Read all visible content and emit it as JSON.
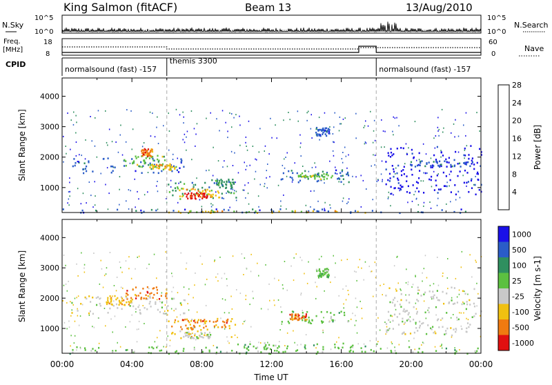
{
  "header": {
    "station": "King Salmon (fitACF)",
    "beam": "Beam 13",
    "date": "13/Aug/2010"
  },
  "strip": {
    "nsky_label": "N.Sky",
    "nsearch_label": "N.Search",
    "freq_label_1": "Freq.",
    "freq_label_2": "[MHz]",
    "nave_label": "Nave",
    "cpid_label": "CPID",
    "nsky_ticks": [
      "10^5",
      "10^0"
    ],
    "nsearch_ticks": [
      "10^5",
      "10^0"
    ],
    "freq_ticks": [
      "18",
      "8"
    ],
    "nave_ticks": [
      "60",
      "0"
    ],
    "cpid_segments": [
      {
        "label": "normalsound (fast)  -157",
        "start": 0,
        "end": 6
      },
      {
        "label": "themis 3300",
        "start": 6,
        "end": 18
      },
      {
        "label": "normalsound (fast)  -157",
        "start": 18,
        "end": 24
      }
    ]
  },
  "chart_data": [
    {
      "type": "heatmap",
      "panel": "power",
      "xlabel": "",
      "ylabel": "Slant Range [km]",
      "x_ticks": [
        "00:00",
        "04:00",
        "08:00",
        "12:00",
        "16:00",
        "20:00",
        "00:00"
      ],
      "xlim": [
        0,
        24
      ],
      "ylim": [
        180,
        4600
      ],
      "y_ticks": [
        1000,
        2000,
        3000,
        4000
      ],
      "colorbar": {
        "label": "Power [dB]",
        "ticks": [
          "4",
          "8",
          "12",
          "16",
          "20",
          "24",
          "28"
        ],
        "colors": [
          "#1a10e8",
          "#2a5cc8",
          "#2f8f5f",
          "#5cc040",
          "#f0c010",
          "#f07a10",
          "#e01010"
        ]
      },
      "bands": [
        {
          "t0": 0.5,
          "t1": 7.0,
          "r0": 1500,
          "r1": 2000,
          "level": 1
        },
        {
          "t0": 3.5,
          "t1": 6.0,
          "r0": 1700,
          "r1": 2100,
          "level": 3
        },
        {
          "t0": 4.5,
          "t1": 5.2,
          "r0": 2050,
          "r1": 2300,
          "level": 5
        },
        {
          "t0": 5.0,
          "t1": 6.5,
          "r0": 1600,
          "r1": 1800,
          "level": 4
        },
        {
          "t0": 6.0,
          "t1": 10.0,
          "r0": 650,
          "r1": 1250,
          "level": 2
        },
        {
          "t0": 6.5,
          "t1": 9.0,
          "r0": 700,
          "r1": 1000,
          "level": 4
        },
        {
          "t0": 7.0,
          "t1": 8.3,
          "r0": 650,
          "r1": 850,
          "level": 6
        },
        {
          "t0": 8.5,
          "t1": 9.8,
          "r0": 1000,
          "r1": 1300,
          "level": 2
        },
        {
          "t0": 12.5,
          "t1": 16.5,
          "r0": 1200,
          "r1": 1600,
          "level": 1
        },
        {
          "t0": 13.5,
          "t1": 15.5,
          "r0": 1300,
          "r1": 1500,
          "level": 3
        },
        {
          "t0": 14.5,
          "t1": 15.3,
          "r0": 2700,
          "r1": 3000,
          "level": 1
        },
        {
          "t0": 18.5,
          "t1": 24.0,
          "r0": 800,
          "r1": 2400,
          "level": 0
        },
        {
          "t0": 19.5,
          "t1": 23.5,
          "r0": 1700,
          "r1": 1900,
          "level": 1
        },
        {
          "t0": 0.0,
          "t1": 24.0,
          "r0": 190,
          "r1": 320,
          "level": 1
        },
        {
          "t0": 6.0,
          "t1": 18.0,
          "r0": 190,
          "r1": 260,
          "level": 4
        }
      ]
    },
    {
      "type": "heatmap",
      "panel": "velocity",
      "xlabel": "Time UT",
      "ylabel": "Slant Range [km]",
      "x_ticks": [
        "00:00",
        "04:00",
        "08:00",
        "12:00",
        "16:00",
        "20:00",
        "00:00"
      ],
      "xlim": [
        0,
        24
      ],
      "ylim": [
        180,
        4600
      ],
      "y_ticks": [
        1000,
        2000,
        3000,
        4000
      ],
      "colorbar": {
        "label": "Velocity [m s-1]",
        "ticks": [
          "1000",
          "500",
          "100",
          "25",
          "-25",
          "-100",
          "-500",
          "-1000"
        ],
        "colors": [
          "#1a10e8",
          "#2a5cc8",
          "#2f8f5f",
          "#5cc040",
          "#c8c8c8",
          "#f0c010",
          "#f07a10",
          "#e01010"
        ]
      },
      "bands": [
        {
          "t0": 0.5,
          "t1": 7.0,
          "r0": 1500,
          "r1": 2100,
          "level": 4
        },
        {
          "t0": 3.5,
          "t1": 6.0,
          "r0": 2000,
          "r1": 2400,
          "level": 6
        },
        {
          "t0": 2.5,
          "t1": 4.0,
          "r0": 1800,
          "r1": 2100,
          "level": 5
        },
        {
          "t0": 6.0,
          "t1": 10.0,
          "r0": 700,
          "r1": 1350,
          "level": 5
        },
        {
          "t0": 6.5,
          "t1": 9.5,
          "r0": 1000,
          "r1": 1350,
          "level": 6
        },
        {
          "t0": 7.0,
          "t1": 8.5,
          "r0": 700,
          "r1": 900,
          "level": 4
        },
        {
          "t0": 12.5,
          "t1": 16.5,
          "r0": 1200,
          "r1": 1600,
          "level": 3
        },
        {
          "t0": 13.0,
          "t1": 14.0,
          "r0": 1300,
          "r1": 1500,
          "level": 6
        },
        {
          "t0": 14.5,
          "t1": 15.3,
          "r0": 2700,
          "r1": 3000,
          "level": 3
        },
        {
          "t0": 18.5,
          "t1": 24.0,
          "r0": 800,
          "r1": 2400,
          "level": 4
        },
        {
          "t0": 0.0,
          "t1": 24.0,
          "r0": 190,
          "r1": 420,
          "level": 3
        },
        {
          "t0": 10.0,
          "t1": 18.0,
          "r0": 190,
          "r1": 550,
          "level": 3
        }
      ]
    }
  ]
}
